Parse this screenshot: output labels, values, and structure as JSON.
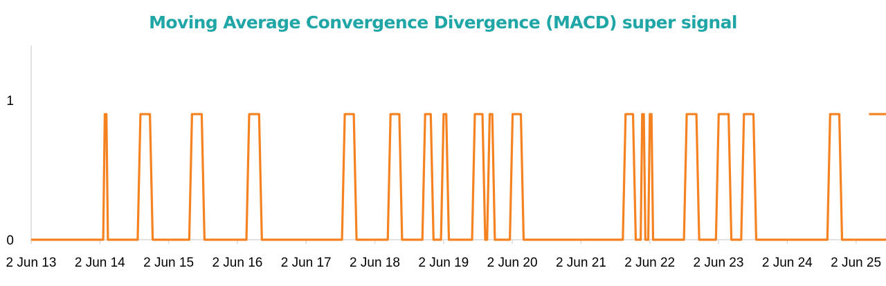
{
  "chart_data": {
    "type": "line",
    "title": "Moving Average Convergence Divergence (MACD) super signal",
    "xlabel": "",
    "ylabel": "",
    "ylim": [
      0,
      1.4
    ],
    "y_ticks": [
      "0",
      "1"
    ],
    "x_ticks": [
      "2 Jun 13",
      "2 Jun 14",
      "2 Jun 15",
      "2 Jun 16",
      "2 Jun 17",
      "2 Jun 18",
      "2 Jun 19",
      "2 Jun 20",
      "2 Jun 21",
      "2 Jun 22",
      "2 Jun 23",
      "2 Jun 24",
      "2 Jun 25"
    ],
    "xlim": [
      "2013-06-02",
      "2025-08-10"
    ],
    "grid": false,
    "legend": "none",
    "series_color": "#f58220",
    "title_color": "#20a6a6",
    "signal_level": 0.9,
    "signal_intervals": [
      [
        "2014-06-20",
        "2014-07-15"
      ],
      [
        "2014-12-20",
        "2015-03-10"
      ],
      [
        "2015-09-20",
        "2015-12-10"
      ],
      [
        "2016-07-20",
        "2016-10-10"
      ],
      [
        "2017-12-10",
        "2018-02-25"
      ],
      [
        "2018-08-10",
        "2018-10-25"
      ],
      [
        "2019-02-10",
        "2019-04-10"
      ],
      [
        "2019-05-20",
        "2019-07-01"
      ],
      [
        "2019-11-01",
        "2020-01-10"
      ],
      [
        "2020-01-20",
        "2020-03-01"
      ],
      [
        "2020-05-20",
        "2020-08-01"
      ],
      [
        "2022-01-10",
        "2022-03-20"
      ],
      [
        "2022-04-15",
        "2022-05-10"
      ],
      [
        "2022-05-25",
        "2022-06-20"
      ],
      [
        "2022-12-01",
        "2023-02-20"
      ],
      [
        "2023-05-20",
        "2023-08-10"
      ],
      [
        "2023-10-01",
        "2023-12-20"
      ],
      [
        "2025-01-01",
        "2025-03-20"
      ],
      [
        "2026-01-01",
        "2026-02-15"
      ]
    ]
  }
}
